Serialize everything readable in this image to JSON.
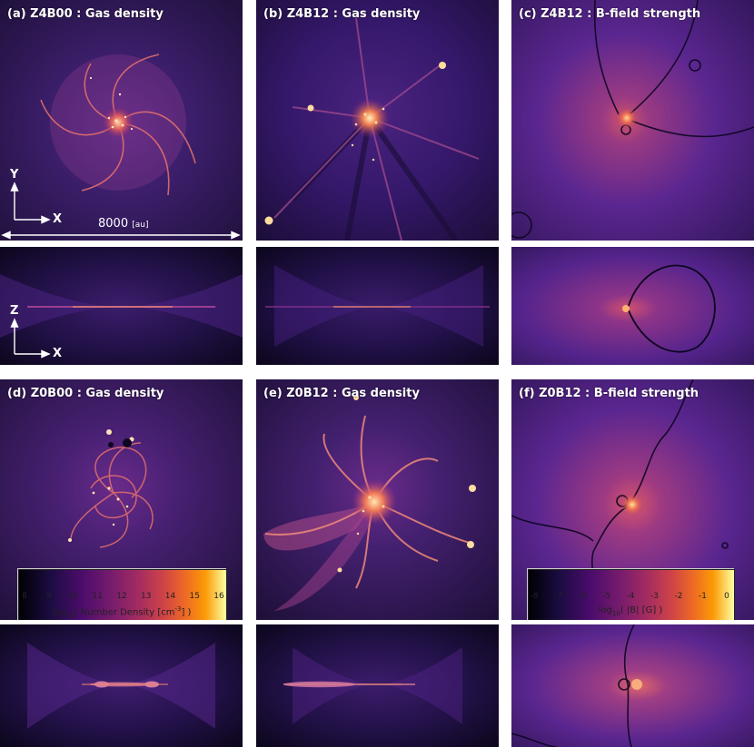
{
  "panels": {
    "a": {
      "title": "(a) Z4B00 : Gas density"
    },
    "b": {
      "title": "(b) Z4B12 : Gas density"
    },
    "c": {
      "title": "(c) Z4B12 : B-field strength"
    },
    "d": {
      "title": "(d) Z0B00 : Gas density"
    },
    "e": {
      "title": "(e) Z0B12 : Gas density"
    },
    "f": {
      "title": "(f) Z0B12 : B-field strength"
    }
  },
  "axes": {
    "top": {
      "vertical": "Y",
      "horizontal": "X"
    },
    "side": {
      "vertical": "Z",
      "horizontal": "X"
    }
  },
  "scale": {
    "value": "8000",
    "unit": "[au]"
  },
  "colorbars": {
    "density": {
      "ticks": [
        "8",
        "9",
        "10",
        "11",
        "12",
        "13",
        "14",
        "15",
        "16"
      ],
      "label_pre": "log",
      "label_sub": "10",
      "label_mid": "( Number Density [cm",
      "label_sup": "-3",
      "label_post": "] )"
    },
    "bfield": {
      "ticks": [
        "-8",
        "-7",
        "-6",
        "-5",
        "-4",
        "-3",
        "-2",
        "-1",
        "0"
      ],
      "label_pre": "log",
      "label_sub": "10",
      "label_rest": "( |B| [G] )"
    }
  },
  "colors": {
    "colormap": [
      "#000004",
      "#1b0c41",
      "#4a0c6b",
      "#781c6d",
      "#a52c60",
      "#cf4446",
      "#ed6925",
      "#fb9b06",
      "#f7d13d",
      "#fcffa4"
    ],
    "background_dark": "#1f1240",
    "arrow": "#ffffff"
  }
}
